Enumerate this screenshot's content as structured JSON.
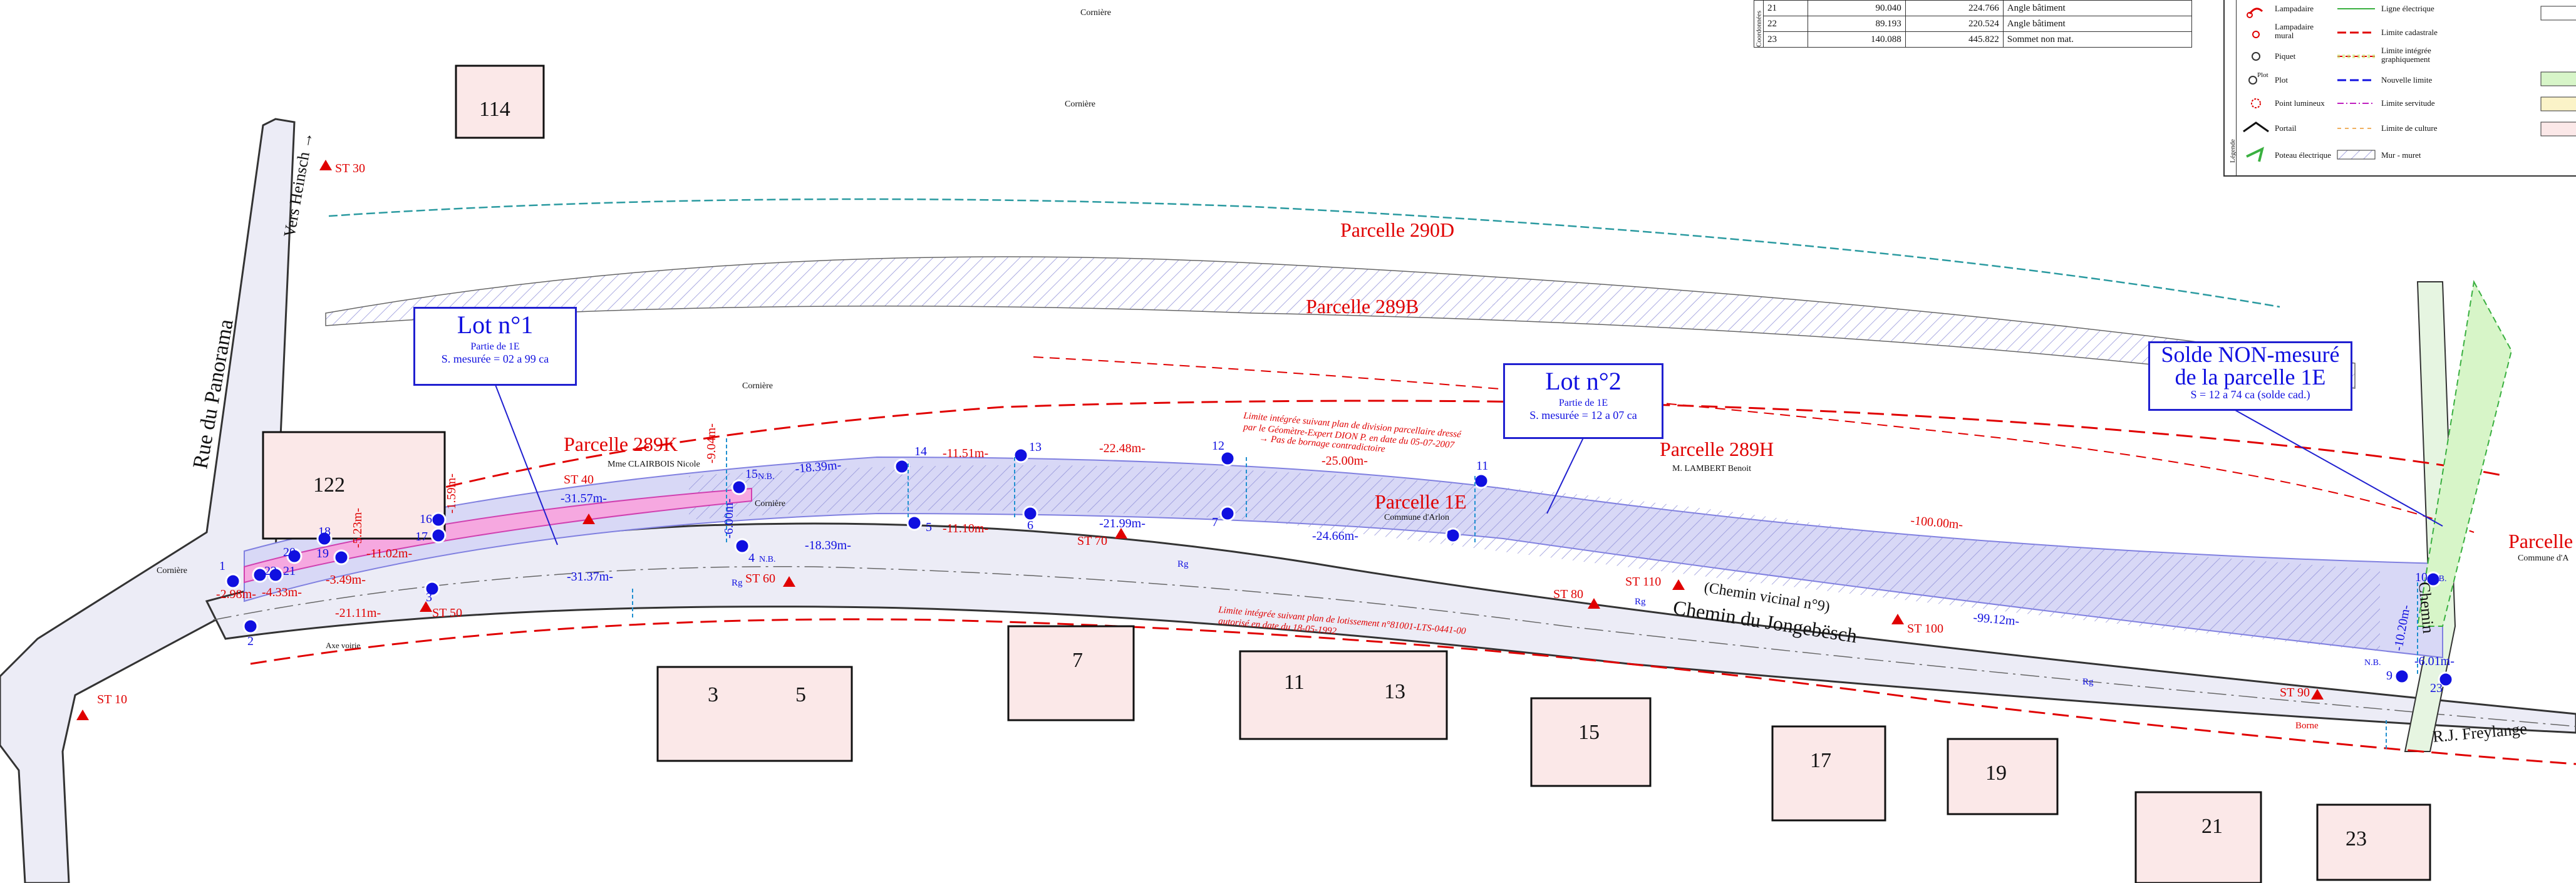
{
  "parcels": {
    "p290d": "Parcelle 290D",
    "p289b": "Parcelle 289B",
    "p289k": "Parcelle 289K",
    "p289k_owner": "Mme CLAIRBOIS Nicole",
    "p1e": "Parcelle 1E",
    "p1e_commune": "Commune d'Arlon",
    "p289h": "Parcelle 289H",
    "p289h_owner": "M. LAMBERT Benoit",
    "p_right": "Parcelle",
    "p_right_commune": "Commune d'A"
  },
  "lots": {
    "lot1": {
      "title": "Lot n°1",
      "sub": "Partie de 1E",
      "area": "S. mesurée = 02 a 99 ca"
    },
    "lot2": {
      "title": "Lot n°2",
      "sub": "Partie de 1E",
      "area": "S. mesurée = 12 a 07 ca"
    },
    "solde": {
      "title1": "Solde NON-mesuré",
      "title2": "de la parcelle 1E",
      "area": "S = 12 a 74 ca (solde cad.)"
    }
  },
  "roads": {
    "panorama": "Rue du Panorama",
    "heinsch": "Vers Heinsch →",
    "jongebesch": "Chemin du Jongebësch",
    "vicinal": "(Chemin vicinal n°9)",
    "chemin": "Chemin",
    "freylange": "R.J. Freylange",
    "axe": "Axe voirie"
  },
  "stations": [
    "ST 30",
    "ST 10",
    "ST 40",
    "ST 50",
    "ST 60",
    "ST 70",
    "ST 80",
    "ST 110",
    "ST 100",
    "ST 90"
  ],
  "buildings": [
    "114",
    "122",
    "3",
    "5",
    "7",
    "11",
    "13",
    "15",
    "17",
    "19",
    "21",
    "23"
  ],
  "points": [
    "1",
    "2",
    "3",
    "4",
    "5",
    "6",
    "7",
    "8",
    "9",
    "10",
    "11",
    "12",
    "13",
    "14",
    "15",
    "16",
    "17",
    "18",
    "19",
    "20",
    "21",
    "22",
    "23"
  ],
  "point_tags": {
    "nb": "N.B."
  },
  "misc": {
    "corniere": "Cornière",
    "rg": "Rg",
    "borne": "Borne"
  },
  "distances": [
    "-31.57m-",
    "-18.39m-",
    "-11.51m-",
    "-22.48m-",
    "-25.00m-",
    "-11.10m-",
    "-21.99m-",
    "-24.66m-",
    "-31.37m-",
    "-18.39m-",
    "-11.02m-",
    "-3.49m-",
    "-4.33m-",
    "-21.11m-",
    "-2.98m-",
    "-100.00m-",
    "-99.12m-",
    "-6.01m-",
    "-9.04m-",
    "-6.00m-",
    "-1.59m-",
    "-5.23m-",
    "-10.20m-"
  ],
  "notes": {
    "note1_l1": "Limite intégrée suivant plan de division parcellaire dressé",
    "note1_l2": "par le Géomètre-Expert DION P. en date du 05-07-2007",
    "note1_l3": "→ Pas de bornage contradictoire",
    "note2_l1": "Limite intégrée suivant plan de lotissement n°81001-LTS-0441-00",
    "note2_l2": "autorisé en date du 18-05-1992"
  },
  "table": {
    "side_label": "Coordonnées",
    "rows": [
      {
        "n": "21",
        "x": "90.040",
        "y": "224.766",
        "desc": "Angle bâtiment"
      },
      {
        "n": "22",
        "x": "89.193",
        "y": "220.524",
        "desc": "Angle bâtiment"
      },
      {
        "n": "23",
        "x": "140.088",
        "y": "445.822",
        "desc": "Sommet non mat."
      }
    ]
  },
  "legend": {
    "title": "Légende",
    "left": [
      "Lampadaire",
      "Lampadaire mural",
      "Piquet",
      "Plot",
      "Point lumineux",
      "Portail",
      "Poteau électrique"
    ],
    "plot_tag": "Plot",
    "right": [
      "Ligne électrique",
      "Limite cadastrale",
      "Limite intégrée graphiquement",
      "Nouvelle limite",
      "Limite servitude",
      "Limite de culture",
      "Mur - muret"
    ]
  },
  "colors": {
    "red": "#e00000",
    "blue": "#1010e0",
    "road": "#ececf6",
    "building": "#fbe8e8",
    "strip": "#b8b8ee"
  }
}
